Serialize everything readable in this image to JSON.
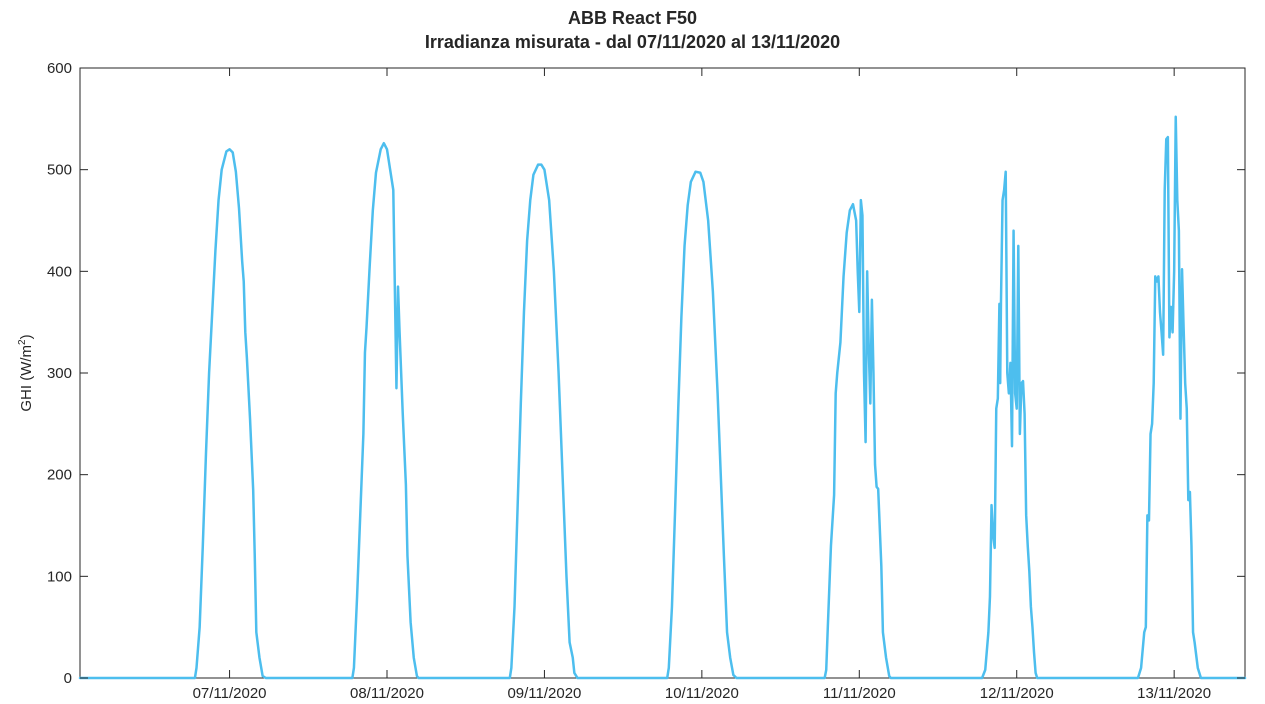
{
  "chart_data": {
    "type": "line",
    "title": [
      "ABB React F50",
      "Irradianza misurata - dal 07/11/2020 al 13/11/2020"
    ],
    "xlabel": "",
    "ylabel": "GHI (W/m²)",
    "ylabel_base": "GHI (W/m",
    "ylabel_sup": "2",
    "ylabel_close": ")",
    "ylim": [
      0,
      600
    ],
    "yticks": [
      0,
      100,
      200,
      300,
      400,
      500,
      600
    ],
    "xlim": [
      -0.95,
      6.45
    ],
    "xticks": [
      0,
      1,
      2,
      3,
      4,
      5,
      6
    ],
    "xtick_labels": [
      "07/11/2020",
      "08/11/2020",
      "09/11/2020",
      "10/11/2020",
      "11/11/2020",
      "12/11/2020",
      "13/11/2020"
    ],
    "grid": false,
    "line_color": "#4DBEEE",
    "series": [
      {
        "points": [
          [
            -0.95,
            0
          ],
          [
            -0.22,
            0
          ],
          [
            -0.21,
            10
          ],
          [
            -0.19,
            50
          ],
          [
            -0.17,
            130
          ],
          [
            -0.15,
            220
          ],
          [
            -0.13,
            300
          ],
          [
            -0.11,
            360
          ],
          [
            -0.09,
            420
          ],
          [
            -0.07,
            470
          ],
          [
            -0.05,
            500
          ],
          [
            -0.02,
            518
          ],
          [
            0.0,
            520
          ],
          [
            0.02,
            517
          ],
          [
            0.04,
            498
          ],
          [
            0.06,
            462
          ],
          [
            0.08,
            410
          ],
          [
            0.09,
            390
          ],
          [
            0.1,
            340
          ],
          [
            0.11,
            315
          ],
          [
            0.13,
            255
          ],
          [
            0.15,
            185
          ],
          [
            0.16,
            120
          ],
          [
            0.17,
            45
          ],
          [
            0.19,
            20
          ],
          [
            0.21,
            2
          ],
          [
            0.23,
            0
          ],
          [
            0.78,
            0
          ],
          [
            0.79,
            10
          ],
          [
            0.81,
            80
          ],
          [
            0.83,
            160
          ],
          [
            0.85,
            240
          ],
          [
            0.86,
            320
          ],
          [
            0.87,
            345
          ],
          [
            0.89,
            405
          ],
          [
            0.91,
            460
          ],
          [
            0.93,
            497
          ],
          [
            0.96,
            520
          ],
          [
            0.98,
            526
          ],
          [
            1.0,
            520
          ],
          [
            1.02,
            500
          ],
          [
            1.04,
            480
          ],
          [
            1.06,
            285
          ],
          [
            1.07,
            385
          ],
          [
            1.08,
            340
          ],
          [
            1.09,
            300
          ],
          [
            1.1,
            260
          ],
          [
            1.12,
            190
          ],
          [
            1.13,
            120
          ],
          [
            1.15,
            55
          ],
          [
            1.17,
            20
          ],
          [
            1.19,
            2
          ],
          [
            1.2,
            0
          ],
          [
            1.78,
            0
          ],
          [
            1.79,
            10
          ],
          [
            1.81,
            70
          ],
          [
            1.83,
            170
          ],
          [
            1.85,
            270
          ],
          [
            1.87,
            360
          ],
          [
            1.89,
            430
          ],
          [
            1.91,
            470
          ],
          [
            1.93,
            495
          ],
          [
            1.96,
            505
          ],
          [
            1.98,
            505
          ],
          [
            2.0,
            500
          ],
          [
            2.03,
            470
          ],
          [
            2.06,
            400
          ],
          [
            2.09,
            300
          ],
          [
            2.12,
            180
          ],
          [
            2.14,
            100
          ],
          [
            2.16,
            35
          ],
          [
            2.18,
            20
          ],
          [
            2.19,
            5
          ],
          [
            2.21,
            0
          ],
          [
            2.78,
            0
          ],
          [
            2.79,
            10
          ],
          [
            2.81,
            70
          ],
          [
            2.83,
            165
          ],
          [
            2.85,
            265
          ],
          [
            2.87,
            355
          ],
          [
            2.89,
            425
          ],
          [
            2.91,
            465
          ],
          [
            2.93,
            488
          ],
          [
            2.96,
            498
          ],
          [
            2.99,
            497
          ],
          [
            3.01,
            488
          ],
          [
            3.04,
            450
          ],
          [
            3.07,
            380
          ],
          [
            3.1,
            280
          ],
          [
            3.12,
            200
          ],
          [
            3.14,
            120
          ],
          [
            3.16,
            45
          ],
          [
            3.18,
            20
          ],
          [
            3.2,
            3
          ],
          [
            3.22,
            0
          ],
          [
            3.78,
            0
          ],
          [
            3.79,
            8
          ],
          [
            3.8,
            50
          ],
          [
            3.82,
            130
          ],
          [
            3.84,
            180
          ],
          [
            3.85,
            280
          ],
          [
            3.86,
            300
          ],
          [
            3.88,
            330
          ],
          [
            3.9,
            395
          ],
          [
            3.92,
            438
          ],
          [
            3.94,
            460
          ],
          [
            3.96,
            466
          ],
          [
            3.98,
            450
          ],
          [
            3.99,
            400
          ],
          [
            4.0,
            360
          ],
          [
            4.01,
            470
          ],
          [
            4.02,
            455
          ],
          [
            4.03,
            300
          ],
          [
            4.04,
            232
          ],
          [
            4.05,
            400
          ],
          [
            4.06,
            325
          ],
          [
            4.07,
            270
          ],
          [
            4.08,
            372
          ],
          [
            4.09,
            300
          ],
          [
            4.1,
            210
          ],
          [
            4.11,
            188
          ],
          [
            4.12,
            186
          ],
          [
            4.14,
            110
          ],
          [
            4.15,
            45
          ],
          [
            4.17,
            20
          ],
          [
            4.19,
            2
          ],
          [
            4.2,
            0
          ],
          [
            4.78,
            0
          ],
          [
            4.8,
            8
          ],
          [
            4.82,
            45
          ],
          [
            4.83,
            80
          ],
          [
            4.84,
            170
          ],
          [
            4.85,
            140
          ],
          [
            4.86,
            128
          ],
          [
            4.87,
            265
          ],
          [
            4.88,
            275
          ],
          [
            4.89,
            368
          ],
          [
            4.895,
            290
          ],
          [
            4.9,
            370
          ],
          [
            4.91,
            470
          ],
          [
            4.92,
            480
          ],
          [
            4.93,
            498
          ],
          [
            4.94,
            300
          ],
          [
            4.95,
            280
          ],
          [
            4.96,
            310
          ],
          [
            4.97,
            228
          ],
          [
            4.98,
            440
          ],
          [
            4.99,
            280
          ],
          [
            5.0,
            265
          ],
          [
            5.01,
            425
          ],
          [
            5.02,
            240
          ],
          [
            5.03,
            290
          ],
          [
            5.04,
            292
          ],
          [
            5.05,
            260
          ],
          [
            5.06,
            160
          ],
          [
            5.07,
            130
          ],
          [
            5.08,
            105
          ],
          [
            5.09,
            70
          ],
          [
            5.1,
            50
          ],
          [
            5.11,
            25
          ],
          [
            5.12,
            5
          ],
          [
            5.13,
            0
          ],
          [
            5.77,
            0
          ],
          [
            5.79,
            10
          ],
          [
            5.81,
            45
          ],
          [
            5.82,
            50
          ],
          [
            5.83,
            160
          ],
          [
            5.84,
            155
          ],
          [
            5.85,
            240
          ],
          [
            5.86,
            250
          ],
          [
            5.87,
            290
          ],
          [
            5.88,
            395
          ],
          [
            5.89,
            390
          ],
          [
            5.9,
            395
          ],
          [
            5.91,
            360
          ],
          [
            5.92,
            340
          ],
          [
            5.93,
            318
          ],
          [
            5.94,
            480
          ],
          [
            5.95,
            530
          ],
          [
            5.96,
            532
          ],
          [
            5.97,
            335
          ],
          [
            5.98,
            365
          ],
          [
            5.99,
            340
          ],
          [
            6.0,
            400
          ],
          [
            6.01,
            552
          ],
          [
            6.02,
            470
          ],
          [
            6.03,
            440
          ],
          [
            6.04,
            255
          ],
          [
            6.05,
            402
          ],
          [
            6.06,
            345
          ],
          [
            6.07,
            290
          ],
          [
            6.08,
            265
          ],
          [
            6.09,
            175
          ],
          [
            6.1,
            183
          ],
          [
            6.11,
            130
          ],
          [
            6.12,
            45
          ],
          [
            6.13,
            35
          ],
          [
            6.15,
            10
          ],
          [
            6.17,
            0
          ],
          [
            6.45,
            0
          ]
        ]
      }
    ]
  }
}
